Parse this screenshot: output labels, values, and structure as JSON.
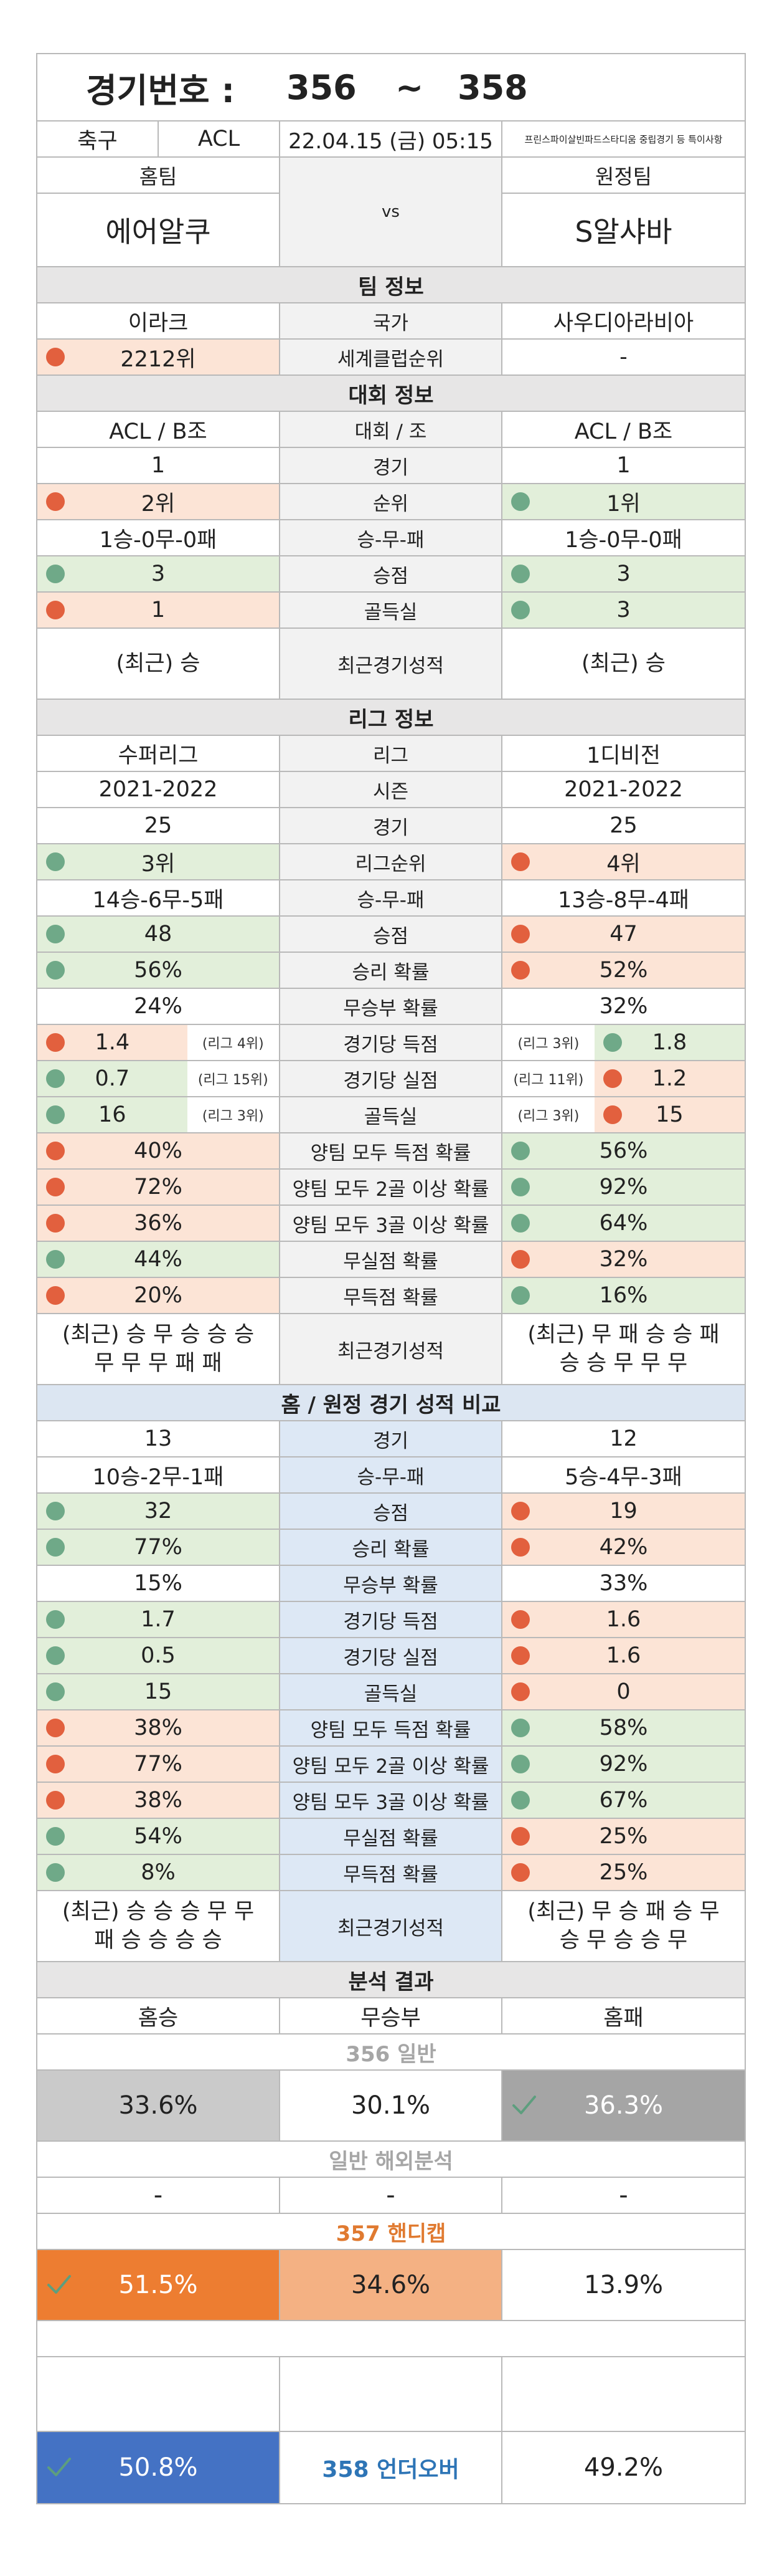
{
  "header": {
    "label": "경기번호 :",
    "from": "356",
    "sep": "~",
    "to": "358"
  },
  "match": {
    "sport": "축구",
    "league": "ACL",
    "datetime": "22.04.15 (금) 05:15",
    "note": "프린스파이살빈파드스타디움 중립경기 등 특이사항"
  },
  "teams": {
    "home_header": "홈팀",
    "vs": "vs",
    "away_header": "원정팀",
    "home": "에어알쿠",
    "away": "S알샤바"
  },
  "sections": [
    {
      "title": "팀 정보",
      "style": "gray",
      "rows": [
        {
          "home": "이라크",
          "label": "국가",
          "away": "사우디아라비아"
        },
        {
          "home": "2212위",
          "home_dot": "red",
          "label": "세계클럽순위",
          "away": "-"
        }
      ]
    },
    {
      "title": "대회 정보",
      "style": "gray",
      "rows": [
        {
          "home": "ACL / B조",
          "label": "대회 / 조",
          "away": "ACL / B조"
        },
        {
          "home": "1",
          "label": "경기",
          "away": "1"
        },
        {
          "home": "2위",
          "home_dot": "red",
          "label": "순위",
          "away": "1위",
          "away_dot": "green"
        },
        {
          "home": "1승-0무-0패",
          "label": "승-무-패",
          "away": "1승-0무-0패"
        },
        {
          "home": "3",
          "home_dot": "green",
          "label": "승점",
          "away": "3",
          "away_dot": "green"
        },
        {
          "home": "1",
          "home_dot": "red",
          "label": "골득실",
          "away": "3",
          "away_dot": "green"
        },
        {
          "home": [
            "(최근) 승"
          ],
          "label": "최근경기성적",
          "away": [
            "(최근) 승"
          ]
        }
      ]
    },
    {
      "title": "리그 정보",
      "style": "gray",
      "rows": [
        {
          "home": "수퍼리그",
          "label": "리그",
          "away": "1디비전"
        },
        {
          "home": "2021-2022",
          "label": "시즌",
          "away": "2021-2022"
        },
        {
          "home": "25",
          "label": "경기",
          "away": "25"
        },
        {
          "home": "3위",
          "home_dot": "green",
          "label": "리그순위",
          "away": "4위",
          "away_dot": "red"
        },
        {
          "home": "14승-6무-5패",
          "label": "승-무-패",
          "away": "13승-8무-4패"
        },
        {
          "home": "48",
          "home_dot": "green",
          "label": "승점",
          "away": "47",
          "away_dot": "red"
        },
        {
          "home": "56%",
          "home_dot": "green",
          "label": "승리 확률",
          "away": "52%",
          "away_dot": "red"
        },
        {
          "home": "24%",
          "label": "무승부 확률",
          "away": "32%"
        },
        {
          "home": "1.4",
          "home_dot": "red",
          "home_note": "(리그 4위)",
          "label": "경기당 득점",
          "away": "1.8",
          "away_dot": "green",
          "away_note": "(리그 3위)"
        },
        {
          "home": "0.7",
          "home_dot": "green",
          "home_note": "(리그 15위)",
          "label": "경기당 실점",
          "away": "1.2",
          "away_dot": "red",
          "away_note": "(리그 11위)"
        },
        {
          "home": "16",
          "home_dot": "green",
          "home_note": "(리그 3위)",
          "label": "골득실",
          "away": "15",
          "away_dot": "red",
          "away_note": "(리그 3위)"
        },
        {
          "home": "40%",
          "home_dot": "red",
          "label": "양팀 모두 득점 확률",
          "away": "56%",
          "away_dot": "green"
        },
        {
          "home": "72%",
          "home_dot": "red",
          "label": "양팀 모두 2골 이상 확률",
          "away": "92%",
          "away_dot": "green"
        },
        {
          "home": "36%",
          "home_dot": "red",
          "label": "양팀 모두 3골 이상 확률",
          "away": "64%",
          "away_dot": "green"
        },
        {
          "home": "44%",
          "home_dot": "green",
          "label": "무실점 확률",
          "away": "32%",
          "away_dot": "red"
        },
        {
          "home": "20%",
          "home_dot": "red",
          "label": "무득점 확률",
          "away": "16%",
          "away_dot": "green"
        },
        {
          "home": [
            "(최근) 승 무 승 승 승",
            "무 무 무 패 패"
          ],
          "label": "최근경기성적",
          "away": [
            "(최근) 무 패 승 승 패",
            "승 승 무 무 무"
          ]
        }
      ]
    },
    {
      "title": "홈 / 원정 경기 성적 비교",
      "style": "blue",
      "rows": [
        {
          "home": "13",
          "label": "경기",
          "away": "12"
        },
        {
          "home": "10승-2무-1패",
          "label": "승-무-패",
          "away": "5승-4무-3패"
        },
        {
          "home": "32",
          "home_dot": "green",
          "label": "승점",
          "away": "19",
          "away_dot": "red"
        },
        {
          "home": "77%",
          "home_dot": "green",
          "label": "승리 확률",
          "away": "42%",
          "away_dot": "red"
        },
        {
          "home": "15%",
          "label": "무승부 확률",
          "away": "33%"
        },
        {
          "home": "1.7",
          "home_dot": "green",
          "label": "경기당 득점",
          "away": "1.6",
          "away_dot": "red"
        },
        {
          "home": "0.5",
          "home_dot": "green",
          "label": "경기당 실점",
          "away": "1.6",
          "away_dot": "red"
        },
        {
          "home": "15",
          "home_dot": "green",
          "label": "골득실",
          "away": "0",
          "away_dot": "red"
        },
        {
          "home": "38%",
          "home_dot": "red",
          "label": "양팀 모두 득점 확률",
          "away": "58%",
          "away_dot": "green"
        },
        {
          "home": "77%",
          "home_dot": "red",
          "label": "양팀 모두 2골 이상 확률",
          "away": "92%",
          "away_dot": "green"
        },
        {
          "home": "38%",
          "home_dot": "red",
          "label": "양팀 모두 3골 이상 확률",
          "away": "67%",
          "away_dot": "green"
        },
        {
          "home": "54%",
          "home_dot": "green",
          "label": "무실점 확률",
          "away": "25%",
          "away_dot": "red"
        },
        {
          "home": "8%",
          "home_dot": "green",
          "label": "무득점 확률",
          "away": "25%",
          "away_dot": "red"
        },
        {
          "home": [
            "(최근) 승 승 승 무 무",
            "패 승 승 승 승"
          ],
          "label": "최근경기성적",
          "away": [
            "(최근) 무 승 패 승 무",
            "승 무 승 승 무"
          ]
        }
      ]
    }
  ],
  "analysis": {
    "title": "분석 결과",
    "columns": [
      "홈승",
      "무승부",
      "홈패"
    ],
    "blocks": [
      {
        "title": "356 일반",
        "title_color": "#a6a6a6",
        "cells": [
          {
            "text": "33.6%",
            "fill": "#cacaca"
          },
          {
            "text": "30.1%"
          },
          {
            "text": "36.3%",
            "fill": "#a5a5a5",
            "text_color": "#ffffff",
            "check": true
          }
        ]
      },
      {
        "title": "일반 해외분석",
        "title_color": "#a6a6a6",
        "cells": [
          {
            "text": "-"
          },
          {
            "text": "-"
          },
          {
            "text": "-"
          }
        ]
      },
      {
        "title": "357 핸디캡",
        "title_color": "#e07a30",
        "cells": [
          {
            "text": "51.5%",
            "fill": "#ed7d31",
            "text_color": "#ffffff",
            "check": true
          },
          {
            "text": "34.6%",
            "fill": "#f4b183"
          },
          {
            "text": "13.9%"
          }
        ]
      },
      {
        "cells": [
          {
            "text": "50.8%",
            "fill": "#4472c4",
            "text_color": "#ffffff",
            "check": true
          },
          {
            "text": "358 언더오버",
            "text_color": "#2e75b6"
          },
          {
            "text": "49.2%"
          }
        ]
      }
    ]
  }
}
